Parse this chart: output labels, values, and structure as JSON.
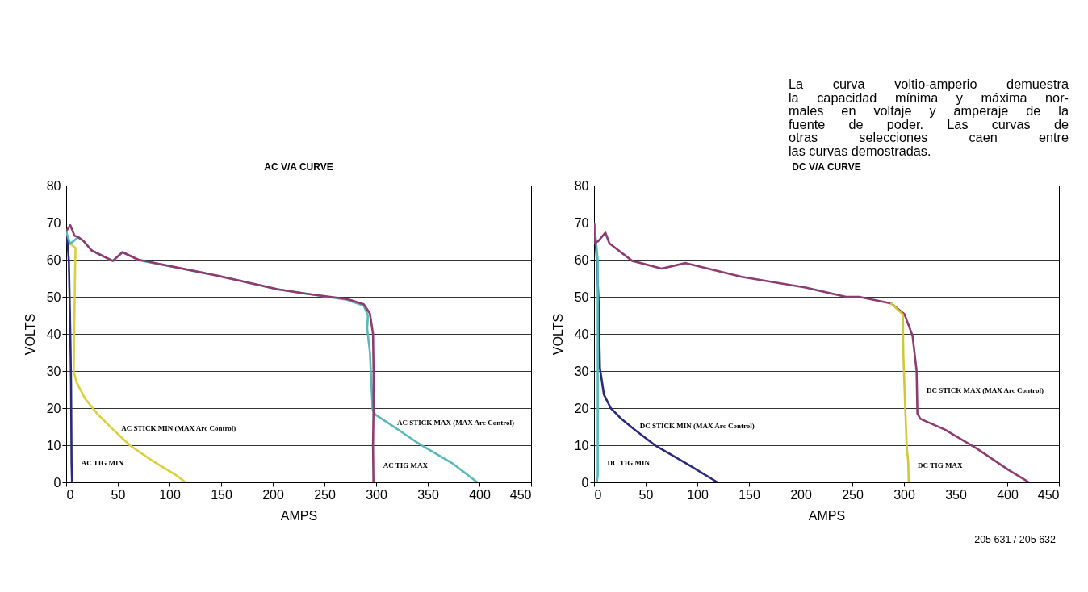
{
  "chart_data": [
    {
      "type": "line",
      "title": "AC V/A CURVE",
      "xlabel": "AMPS",
      "ylabel": "VOLTS",
      "xlim": [
        0,
        450
      ],
      "xticks": [
        0,
        50,
        100,
        150,
        200,
        250,
        300,
        350,
        400,
        450
      ],
      "ylim": [
        0,
        80
      ],
      "yticks": [
        0,
        10,
        20,
        30,
        40,
        50,
        60,
        70,
        80
      ],
      "grid": "y",
      "series": [
        {
          "color": "#d8d040",
          "x": [
            0,
            3.9,
            9,
            8.5,
            8,
            7.3,
            10,
            18.2,
            30,
            44,
            62,
            83,
            106,
            115.5
          ],
          "values": [
            67,
            64.3,
            63.2,
            55,
            45,
            29.9,
            27,
            22.6,
            18.5,
            14.6,
            9.9,
            5.9,
            2,
            0
          ]
        },
        {
          "color": "#2a2a78",
          "x": [
            0,
            1.5,
            2.6,
            3.9,
            4.7,
            5.2,
            5.7
          ],
          "values": [
            67.5,
            64,
            59.6,
            41.4,
            27,
            5.2,
            0
          ]
        },
        {
          "color": "#5ab8b8",
          "x": [
            0,
            3.9,
            11.7,
            17,
            24.6,
            45.4,
            54.5,
            70,
            148,
            205,
            233,
            272,
            288,
            292,
            291.4,
            294,
            296.6,
            299,
            311,
            342,
            373.4,
            398
          ],
          "values": [
            67.5,
            64.3,
            66.1,
            65,
            62.5,
            59.6,
            62.1,
            59.9,
            55.6,
            52,
            50.8,
            49.2,
            47.6,
            45,
            41.4,
            35,
            19.7,
            18.3,
            16.1,
            10.3,
            5.2,
            0
          ]
        },
        {
          "color": "#8c3c70",
          "x": [
            0,
            4,
            8,
            12,
            17,
            24.6,
            45,
            54.5,
            70,
            148,
            205,
            233,
            272,
            288,
            294,
            297,
            297.5,
            297.5,
            297,
            297.4
          ],
          "values": [
            67.7,
            69.3,
            66.5,
            66,
            65,
            62.5,
            59.7,
            62,
            60,
            55.6,
            52,
            50.8,
            49.4,
            48,
            45.5,
            40,
            30,
            20,
            10,
            0
          ]
        }
      ],
      "annotations": [
        {
          "text": "AC STICK MIN (MAX Arc Control)",
          "x": 44,
          "y": 14.6
        },
        {
          "text": "AC TIG MIN",
          "x": 5.2,
          "y": 5.2
        },
        {
          "text": "AC STICK MAX (MAX Arc Control)",
          "x": 311,
          "y": 16.1
        },
        {
          "text": "AC TIG MAX",
          "x": 297.4,
          "y": 4.5
        }
      ]
    },
    {
      "type": "line",
      "title": "DC V/A CURVE",
      "xlabel": "AMPS",
      "ylabel": "VOLTS",
      "xlim": [
        0,
        450
      ],
      "xticks": [
        0,
        50,
        100,
        150,
        200,
        250,
        300,
        350,
        400,
        450
      ],
      "ylim": [
        0,
        80
      ],
      "yticks": [
        0,
        10,
        20,
        30,
        40,
        50,
        60,
        70,
        80
      ],
      "grid": "y",
      "series": [
        {
          "color": "#2a2a78",
          "x": [
            0,
            2.4,
            4.4,
            5.7,
            9.6,
            16.1,
            26.4,
            39.3,
            60,
            91,
            119.5
          ],
          "values": [
            69.8,
            61.2,
            48.9,
            30.8,
            23.6,
            20,
            17.1,
            14.2,
            9.8,
            4.8,
            0
          ]
        },
        {
          "color": "#5ab8b8",
          "x": [
            0,
            1.8,
            3.6,
            3.6,
            3.6,
            2.6
          ],
          "values": [
            69,
            65.5,
            59.7,
            30,
            1.9,
            0
          ]
        },
        {
          "color": "#8c3c70",
          "x": [
            0,
            0.5,
            4.4,
            11,
            14.9,
            36.9,
            65.4,
            88.7,
            143,
            204.8,
            243.8,
            256.5,
            287.6,
            300.5,
            308.3,
            312.2,
            313,
            316,
            339.5,
            370.5,
            401.5,
            420.9
          ],
          "values": [
            69.8,
            64.4,
            65.1,
            67.3,
            64.4,
            59.7,
            57.6,
            59.1,
            55.4,
            52.5,
            50,
            50,
            48.2,
            45.3,
            39.5,
            30.1,
            18.5,
            17.1,
            14.2,
            9.1,
            3.3,
            0
          ]
        },
        {
          "color": "#d0c838",
          "x": [
            287.6,
            298.9,
            299.4,
            301,
            302.8,
            304.1,
            304.6
          ],
          "values": [
            48.2,
            45.3,
            34.4,
            21.4,
            9.1,
            5.5,
            0
          ]
        }
      ],
      "annotations": [
        {
          "text": "DC STICK MIN (MAX Arc Control)",
          "x": 35,
          "y": 15.3
        },
        {
          "text": "DC TIG MIN",
          "x": 3.6,
          "y": 5.3
        },
        {
          "text": "DC STICK MAX (MAX Arc Control)",
          "x": 312.5,
          "y": 24.8
        },
        {
          "text": "DC TIG MAX",
          "x": 304,
          "y": 4.5
        },
        "La curva voltio-amperio demuestra\nla capacidad mínima y máxima nor-\nmales en voltaje y amperaje de la\nfuente de poder. Las curvas de\notras selecciones caen entre\nlas curvas demostradas.",
        "205 631 / 205 632"
      ]
    }
  ]
}
